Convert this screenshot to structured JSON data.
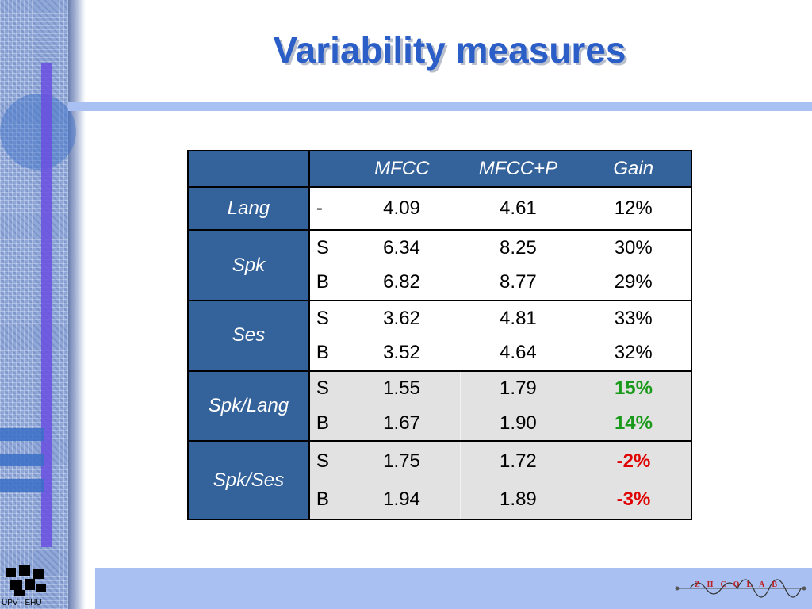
{
  "slide": {
    "title": "Variability measures",
    "left_logo_text": "UPV - EHU",
    "right_logo_text": "ZHCOLAB"
  },
  "table": {
    "header": [
      "",
      "",
      "MFCC",
      "MFCC+P",
      "Gain"
    ],
    "groups": [
      {
        "label": "Lang",
        "rows": [
          {
            "sub": "-",
            "mfcc": "4.09",
            "mfccp": "4.61",
            "gain": "12%"
          }
        ]
      },
      {
        "label": "Spk",
        "rows": [
          {
            "sub": "S",
            "mfcc": "6.34",
            "mfccp": "8.25",
            "gain": "30%"
          },
          {
            "sub": "B",
            "mfcc": "6.82",
            "mfccp": "8.77",
            "gain": "29%"
          }
        ]
      },
      {
        "label": "Ses",
        "rows": [
          {
            "sub": "S",
            "mfcc": "3.62",
            "mfccp": "4.81",
            "gain": "33%"
          },
          {
            "sub": "B",
            "mfcc": "3.52",
            "mfccp": "4.64",
            "gain": "32%"
          }
        ]
      },
      {
        "label": "Spk/Lang",
        "rows": [
          {
            "sub": "S",
            "mfcc": "1.55",
            "mfccp": "1.79",
            "gain": "15%"
          },
          {
            "sub": "B",
            "mfcc": "1.67",
            "mfccp": "1.90",
            "gain": "14%"
          }
        ]
      },
      {
        "label": "Spk/Ses",
        "rows": [
          {
            "sub": "S",
            "mfcc": "1.75",
            "mfccp": "1.72",
            "gain": "-2%"
          },
          {
            "sub": "B",
            "mfcc": "1.94",
            "mfccp": "1.89",
            "gain": "-3%"
          }
        ]
      }
    ]
  },
  "colors": {
    "title": "#2b5fc7",
    "header_bg": "#34629a",
    "positive_gain": "#1a9a1a",
    "negative_gain": "#e00000",
    "band": "#a9c0f2"
  }
}
